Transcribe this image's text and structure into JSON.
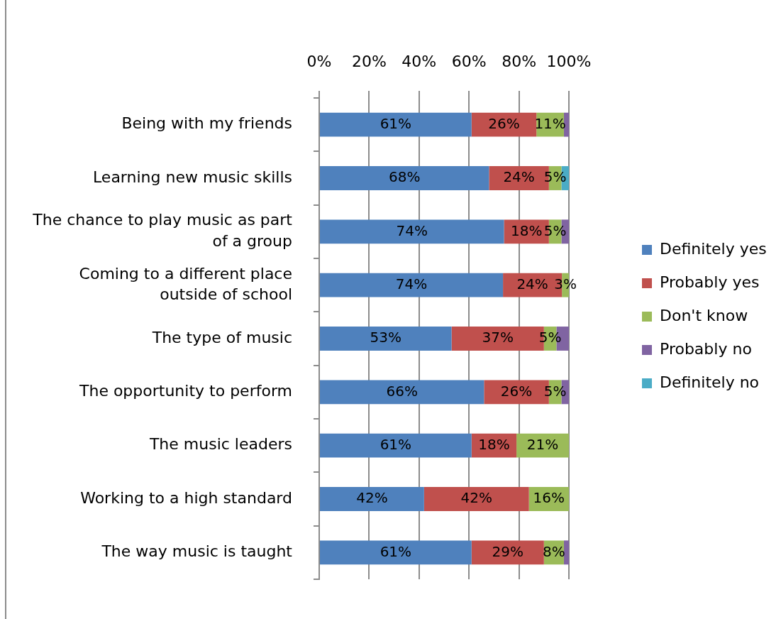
{
  "chart_data": {
    "type": "bar",
    "orientation": "horizontal",
    "stacked": true,
    "categories": [
      "Being with my friends",
      "Learning new music skills",
      "The chance to play music as part of a group",
      "Coming to a different place outside of school",
      "The type of music",
      "The opportunity to perform",
      "The music leaders",
      "Working to a high standard",
      "The way music is taught"
    ],
    "series": [
      {
        "name": "Definitely yes",
        "color": "#4f81bd",
        "values": [
          61,
          68,
          74,
          73.6,
          53,
          66,
          61,
          42,
          61
        ],
        "value_labels": [
          "61%",
          "68%",
          "74%",
          "74%",
          "53%",
          "66%",
          "61%",
          "42%",
          "61%"
        ]
      },
      {
        "name": "Probably yes",
        "color": "#c0504d",
        "values": [
          26,
          24,
          18,
          23.6,
          37,
          26,
          18,
          42,
          29
        ],
        "value_labels": [
          "26%",
          "24%",
          "18%",
          "24%",
          "37%",
          "26%",
          "18%",
          "42%",
          "29%"
        ]
      },
      {
        "name": "Don't know",
        "color": "#9bbb59",
        "values": [
          11,
          5,
          5,
          2.8,
          5,
          5,
          21,
          16,
          8
        ],
        "value_labels": [
          "11%",
          "5%",
          "5%",
          "3%",
          "5%",
          "5%",
          "21%",
          "16%",
          "8%"
        ]
      },
      {
        "name": "Probably no",
        "color": "#8064a2",
        "values": [
          2,
          0,
          3,
          0,
          5,
          3,
          0,
          0,
          2
        ]
      },
      {
        "name": "Definitely no",
        "color": "#4bacc6",
        "values": [
          0,
          3,
          0,
          0,
          0,
          0,
          0,
          0,
          0
        ]
      }
    ],
    "xlim": [
      0,
      100
    ],
    "xticks": [
      {
        "value": 0,
        "label": "0%"
      },
      {
        "value": 20,
        "label": "20%"
      },
      {
        "value": 40,
        "label": "40%"
      },
      {
        "value": 60,
        "label": "60%"
      },
      {
        "value": 80,
        "label": "80%"
      },
      {
        "value": 100,
        "label": "100%"
      }
    ],
    "grid": "x",
    "legend": "right"
  }
}
